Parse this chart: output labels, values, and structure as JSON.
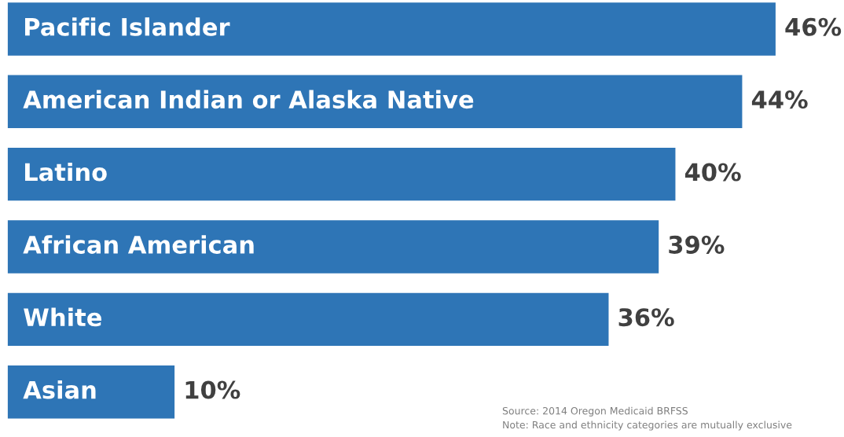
{
  "chart_data": {
    "type": "bar",
    "orientation": "horizontal",
    "categories": [
      "Pacific Islander",
      "American Indian or Alaska Native",
      "Latino",
      "African American",
      "White",
      "Asian"
    ],
    "values": [
      46,
      44,
      40,
      39,
      36,
      10
    ],
    "value_labels": [
      "46%",
      "44%",
      "40%",
      "39%",
      "36%",
      "10%"
    ],
    "color": "#2e75b6",
    "annotations": [
      "Source: 2014 Oregon Medicaid BRFSS",
      "Note: Race and ethnicity categories are mutually exclusive"
    ]
  }
}
